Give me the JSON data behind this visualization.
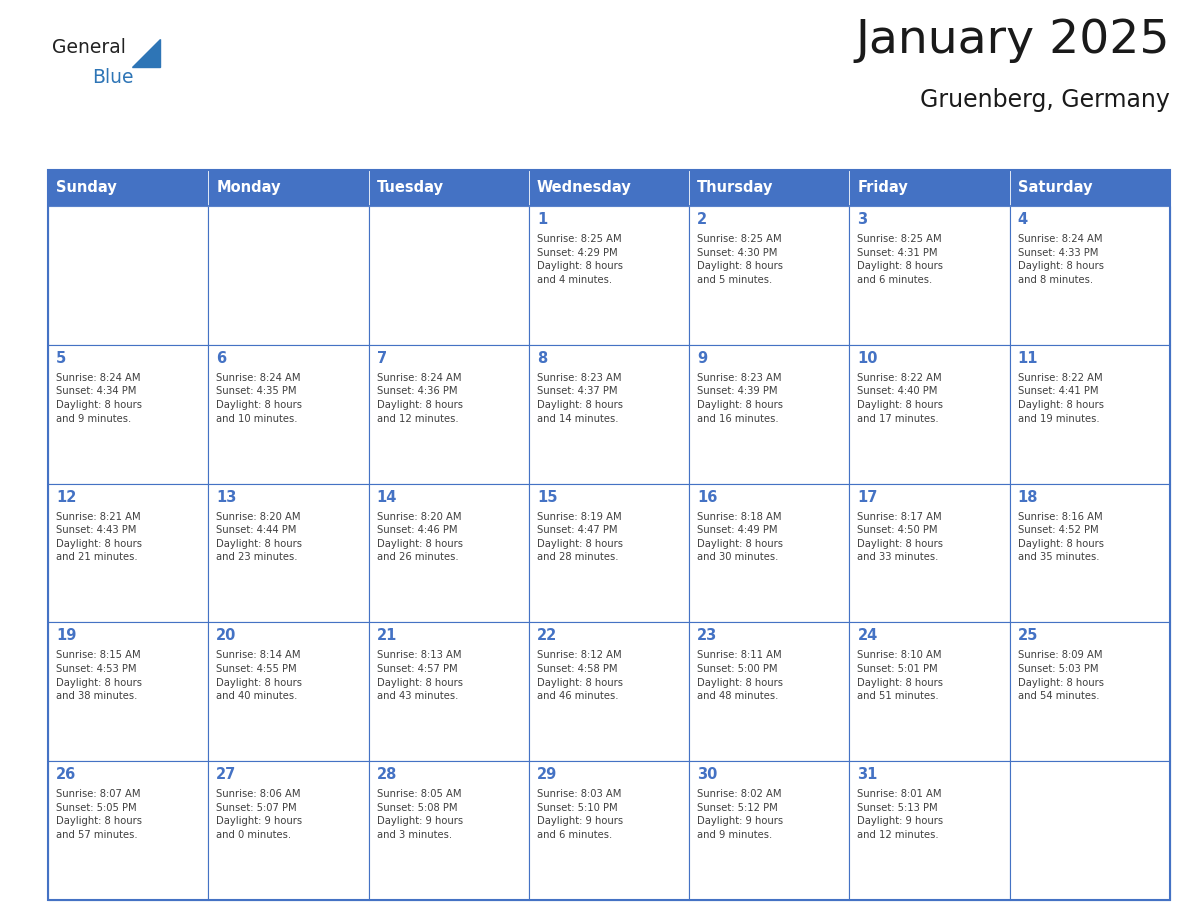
{
  "title": "January 2025",
  "subtitle": "Gruenberg, Germany",
  "days_of_week": [
    "Sunday",
    "Monday",
    "Tuesday",
    "Wednesday",
    "Thursday",
    "Friday",
    "Saturday"
  ],
  "header_bg": "#4472C4",
  "header_text": "#FFFFFF",
  "cell_bg": "#FFFFFF",
  "border_color": "#4472C4",
  "day_num_color": "#4472C4",
  "text_color": "#404040",
  "logo_general_color": "#222222",
  "logo_blue_color": "#2E75B6",
  "title_color": "#1a1a1a",
  "weeks": [
    [
      {
        "day": null,
        "info": null
      },
      {
        "day": null,
        "info": null
      },
      {
        "day": null,
        "info": null
      },
      {
        "day": 1,
        "info": "Sunrise: 8:25 AM\nSunset: 4:29 PM\nDaylight: 8 hours\nand 4 minutes."
      },
      {
        "day": 2,
        "info": "Sunrise: 8:25 AM\nSunset: 4:30 PM\nDaylight: 8 hours\nand 5 minutes."
      },
      {
        "day": 3,
        "info": "Sunrise: 8:25 AM\nSunset: 4:31 PM\nDaylight: 8 hours\nand 6 minutes."
      },
      {
        "day": 4,
        "info": "Sunrise: 8:24 AM\nSunset: 4:33 PM\nDaylight: 8 hours\nand 8 minutes."
      }
    ],
    [
      {
        "day": 5,
        "info": "Sunrise: 8:24 AM\nSunset: 4:34 PM\nDaylight: 8 hours\nand 9 minutes."
      },
      {
        "day": 6,
        "info": "Sunrise: 8:24 AM\nSunset: 4:35 PM\nDaylight: 8 hours\nand 10 minutes."
      },
      {
        "day": 7,
        "info": "Sunrise: 8:24 AM\nSunset: 4:36 PM\nDaylight: 8 hours\nand 12 minutes."
      },
      {
        "day": 8,
        "info": "Sunrise: 8:23 AM\nSunset: 4:37 PM\nDaylight: 8 hours\nand 14 minutes."
      },
      {
        "day": 9,
        "info": "Sunrise: 8:23 AM\nSunset: 4:39 PM\nDaylight: 8 hours\nand 16 minutes."
      },
      {
        "day": 10,
        "info": "Sunrise: 8:22 AM\nSunset: 4:40 PM\nDaylight: 8 hours\nand 17 minutes."
      },
      {
        "day": 11,
        "info": "Sunrise: 8:22 AM\nSunset: 4:41 PM\nDaylight: 8 hours\nand 19 minutes."
      }
    ],
    [
      {
        "day": 12,
        "info": "Sunrise: 8:21 AM\nSunset: 4:43 PM\nDaylight: 8 hours\nand 21 minutes."
      },
      {
        "day": 13,
        "info": "Sunrise: 8:20 AM\nSunset: 4:44 PM\nDaylight: 8 hours\nand 23 minutes."
      },
      {
        "day": 14,
        "info": "Sunrise: 8:20 AM\nSunset: 4:46 PM\nDaylight: 8 hours\nand 26 minutes."
      },
      {
        "day": 15,
        "info": "Sunrise: 8:19 AM\nSunset: 4:47 PM\nDaylight: 8 hours\nand 28 minutes."
      },
      {
        "day": 16,
        "info": "Sunrise: 8:18 AM\nSunset: 4:49 PM\nDaylight: 8 hours\nand 30 minutes."
      },
      {
        "day": 17,
        "info": "Sunrise: 8:17 AM\nSunset: 4:50 PM\nDaylight: 8 hours\nand 33 minutes."
      },
      {
        "day": 18,
        "info": "Sunrise: 8:16 AM\nSunset: 4:52 PM\nDaylight: 8 hours\nand 35 minutes."
      }
    ],
    [
      {
        "day": 19,
        "info": "Sunrise: 8:15 AM\nSunset: 4:53 PM\nDaylight: 8 hours\nand 38 minutes."
      },
      {
        "day": 20,
        "info": "Sunrise: 8:14 AM\nSunset: 4:55 PM\nDaylight: 8 hours\nand 40 minutes."
      },
      {
        "day": 21,
        "info": "Sunrise: 8:13 AM\nSunset: 4:57 PM\nDaylight: 8 hours\nand 43 minutes."
      },
      {
        "day": 22,
        "info": "Sunrise: 8:12 AM\nSunset: 4:58 PM\nDaylight: 8 hours\nand 46 minutes."
      },
      {
        "day": 23,
        "info": "Sunrise: 8:11 AM\nSunset: 5:00 PM\nDaylight: 8 hours\nand 48 minutes."
      },
      {
        "day": 24,
        "info": "Sunrise: 8:10 AM\nSunset: 5:01 PM\nDaylight: 8 hours\nand 51 minutes."
      },
      {
        "day": 25,
        "info": "Sunrise: 8:09 AM\nSunset: 5:03 PM\nDaylight: 8 hours\nand 54 minutes."
      }
    ],
    [
      {
        "day": 26,
        "info": "Sunrise: 8:07 AM\nSunset: 5:05 PM\nDaylight: 8 hours\nand 57 minutes."
      },
      {
        "day": 27,
        "info": "Sunrise: 8:06 AM\nSunset: 5:07 PM\nDaylight: 9 hours\nand 0 minutes."
      },
      {
        "day": 28,
        "info": "Sunrise: 8:05 AM\nSunset: 5:08 PM\nDaylight: 9 hours\nand 3 minutes."
      },
      {
        "day": 29,
        "info": "Sunrise: 8:03 AM\nSunset: 5:10 PM\nDaylight: 9 hours\nand 6 minutes."
      },
      {
        "day": 30,
        "info": "Sunrise: 8:02 AM\nSunset: 5:12 PM\nDaylight: 9 hours\nand 9 minutes."
      },
      {
        "day": 31,
        "info": "Sunrise: 8:01 AM\nSunset: 5:13 PM\nDaylight: 9 hours\nand 12 minutes."
      },
      {
        "day": null,
        "info": null
      }
    ]
  ],
  "fig_width": 11.88,
  "fig_height": 9.18,
  "dpi": 100
}
